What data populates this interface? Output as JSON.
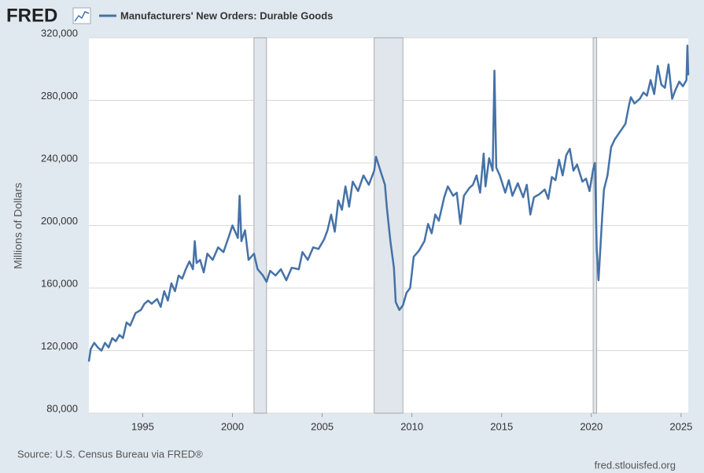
{
  "logo": "FRED",
  "chart_data": {
    "type": "line",
    "y_label": "Millions of Dollars",
    "source": "Source: U.S. Census Bureau via FRED®",
    "site": "fred.stlouisfed.org",
    "x": [
      1992.0,
      1992.1,
      1992.3,
      1992.5,
      1992.7,
      1992.9,
      1993.1,
      1993.3,
      1993.5,
      1993.7,
      1993.9,
      1994.1,
      1994.3,
      1994.6,
      1994.9,
      1995.1,
      1995.3,
      1995.5,
      1995.8,
      1996.0,
      1996.2,
      1996.4,
      1996.6,
      1996.8,
      1997.0,
      1997.2,
      1997.4,
      1997.6,
      1997.8,
      1997.9,
      1998.0,
      1998.2,
      1998.4,
      1998.6,
      1998.9,
      1999.2,
      1999.5,
      1999.8,
      2000.0,
      2000.3,
      2000.4,
      2000.5,
      2000.7,
      2000.9,
      2001.2,
      2001.4,
      2001.7,
      2001.9,
      2002.1,
      2002.4,
      2002.7,
      2003.0,
      2003.3,
      2003.7,
      2003.9,
      2004.2,
      2004.5,
      2004.8,
      2005.1,
      2005.3,
      2005.5,
      2005.7,
      2005.9,
      2006.1,
      2006.3,
      2006.5,
      2006.7,
      2007.0,
      2007.3,
      2007.6,
      2007.9,
      2008.0,
      2008.3,
      2008.5,
      2008.6,
      2008.8,
      2009.0,
      2009.1,
      2009.3,
      2009.5,
      2009.7,
      2009.9,
      2010.0,
      2010.1,
      2010.4,
      2010.7,
      2010.9,
      2011.1,
      2011.3,
      2011.5,
      2011.8,
      2012.0,
      2012.3,
      2012.5,
      2012.7,
      2012.9,
      2013.2,
      2013.4,
      2013.6,
      2013.8,
      2014.0,
      2014.1,
      2014.3,
      2014.5,
      2014.6,
      2014.7,
      2014.9,
      2015.2,
      2015.4,
      2015.6,
      2015.9,
      2016.2,
      2016.4,
      2016.6,
      2016.8,
      2017.1,
      2017.4,
      2017.6,
      2017.8,
      2018.0,
      2018.2,
      2018.4,
      2018.6,
      2018.8,
      2019.0,
      2019.2,
      2019.5,
      2019.7,
      2019.9,
      2020.1,
      2020.2,
      2020.3,
      2020.4,
      2020.6,
      2020.7,
      2020.9,
      2021.1,
      2021.3,
      2021.6,
      2021.9,
      2022.1,
      2022.2,
      2022.4,
      2022.7,
      2022.9,
      2023.1,
      2023.3,
      2023.5,
      2023.7,
      2023.9,
      2024.1,
      2024.3,
      2024.5,
      2024.7,
      2024.9,
      2025.1,
      2025.3,
      2025.35,
      2025.4
    ],
    "series": [
      {
        "name": "Manufacturers' New Orders: Durable Goods",
        "color": "#4572a7",
        "values": [
          113000,
          121000,
          125000,
          122000,
          120000,
          125000,
          122000,
          128000,
          126000,
          130000,
          128000,
          138000,
          136000,
          144000,
          146000,
          150000,
          152000,
          150000,
          153000,
          148000,
          158000,
          152000,
          163000,
          158000,
          168000,
          166000,
          172000,
          177000,
          172000,
          190000,
          176000,
          178000,
          170000,
          182000,
          178000,
          186000,
          183000,
          193000,
          200000,
          192000,
          219000,
          190000,
          197000,
          178000,
          182000,
          172000,
          168000,
          164000,
          171000,
          168000,
          172000,
          165000,
          173000,
          172000,
          183000,
          178000,
          186000,
          185000,
          191000,
          197000,
          207000,
          196000,
          216000,
          210000,
          225000,
          212000,
          228000,
          222000,
          232000,
          226000,
          235000,
          244000,
          233000,
          226000,
          212000,
          190000,
          173000,
          151000,
          146000,
          149000,
          157000,
          160000,
          170000,
          180000,
          184000,
          190000,
          201000,
          195000,
          207000,
          203000,
          218000,
          225000,
          219000,
          221000,
          201000,
          219000,
          224000,
          226000,
          232000,
          221000,
          246000,
          225000,
          243000,
          235000,
          299000,
          237000,
          232000,
          221000,
          229000,
          219000,
          227000,
          218000,
          226000,
          207000,
          218000,
          220000,
          223000,
          217000,
          231000,
          229000,
          242000,
          232000,
          245000,
          249000,
          235000,
          239000,
          228000,
          230000,
          222000,
          236000,
          240000,
          185000,
          165000,
          205000,
          223000,
          232000,
          250000,
          255000,
          260000,
          265000,
          277000,
          282000,
          278000,
          281000,
          285000,
          283000,
          293000,
          284000,
          302000,
          290000,
          288000,
          303000,
          281000,
          287000,
          292000,
          289000,
          293000,
          315000,
          296000
        ]
      }
    ],
    "shaded_periods": [
      [
        2001.2,
        2001.9
      ],
      [
        2007.9,
        2009.5
      ],
      [
        2020.1,
        2020.3
      ]
    ],
    "xlim": [
      1992.0,
      2025.4
    ],
    "xticks": [
      1995,
      2000,
      2005,
      2010,
      2015,
      2020,
      2025
    ],
    "ylim": [
      80000,
      320000
    ],
    "yticks": [
      {
        "value": 80000,
        "label": "80,000"
      },
      {
        "value": 120000,
        "label": "120,000"
      },
      {
        "value": 160000,
        "label": "160,000"
      },
      {
        "value": 200000,
        "label": "200,000"
      },
      {
        "value": 240000,
        "label": "240,000"
      },
      {
        "value": 280000,
        "label": "280,000"
      },
      {
        "value": 320000,
        "label": "320,000"
      }
    ],
    "grid": true
  }
}
